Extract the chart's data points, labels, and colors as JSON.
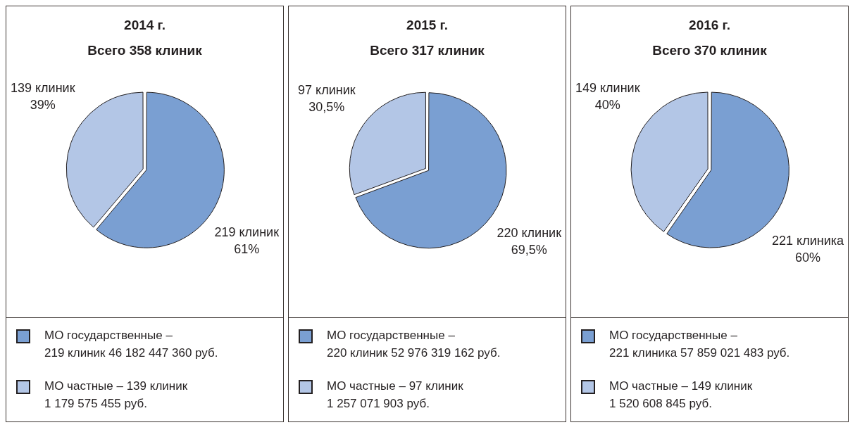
{
  "chart_data": [
    {
      "type": "pie",
      "title": "2014 г.",
      "subtitle": "Всего 358 клиник",
      "categories": [
        "МО государственные –\n219 клиник 46 182 447 360 руб.",
        "МО частные – 139 клиник\n1 179 575 455 руб."
      ],
      "values": [
        219,
        139
      ],
      "colors": [
        "#7a9fd2",
        "#b3c6e6"
      ],
      "value_labels": [
        "219 клиник\n61%",
        "139 клиник\n39%"
      ],
      "legend": "bottom"
    },
    {
      "type": "pie",
      "title": "2015 г.",
      "subtitle": "Всего 317 клиник",
      "categories": [
        "МО государственные –\n220 клиник 52 976 319 162 руб.",
        "МО частные – 97 клиник\n1 257 071 903 руб."
      ],
      "values": [
        220,
        97
      ],
      "colors": [
        "#7a9fd2",
        "#b3c6e6"
      ],
      "value_labels": [
        "220 клиник\n69,5%",
        "97 клиник\n30,5%"
      ],
      "legend": "bottom"
    },
    {
      "type": "pie",
      "title": "2016 г.",
      "subtitle": "Всего 370 клиник",
      "categories": [
        "МО государственные –\n221 клиника 57 859 021 483 руб.",
        "МО частные – 149 клиник\n1 520 608 845 руб."
      ],
      "values": [
        221,
        149
      ],
      "colors": [
        "#7a9fd2",
        "#b3c6e6"
      ],
      "value_labels": [
        "221 клиника\n60%",
        "149 клиник\n40%"
      ],
      "legend": "bottom"
    }
  ]
}
